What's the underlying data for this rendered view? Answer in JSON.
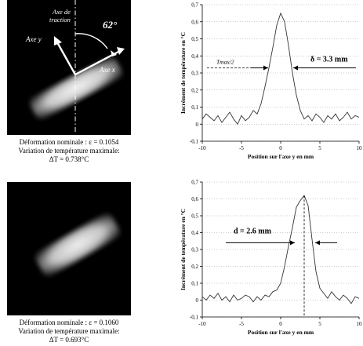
{
  "panels": [
    {
      "image": {
        "axis_traction": [
          "Axe de",
          "traction"
        ],
        "axis_y": "Axe y",
        "axis_x": "Axe x",
        "angle": "62°"
      },
      "caption": {
        "line1": "Déformation nominale : ε = 0.1054",
        "line2": "Variation de température maximale:",
        "line3": "ΔT = 0.738°C"
      }
    },
    {
      "image": {},
      "caption": {
        "line1": "Déformation nominale : ε = 0.1060",
        "line2": "Variation de température maximale:",
        "line3": "ΔT = 0.693°C"
      }
    }
  ],
  "chart_data": [
    {
      "type": "line",
      "title": "",
      "xlabel": "Position sur l'axe y en mm",
      "ylabel": "Incrément de température en °C",
      "xlim": [
        -10,
        10
      ],
      "ylim": [
        -0.1,
        0.7
      ],
      "xticks": [
        -10,
        -5,
        0,
        5,
        10
      ],
      "yticks": [
        -0.1,
        0,
        0.1,
        0.2,
        0.3,
        0.4,
        0.5,
        0.6,
        0.7
      ],
      "grid": "horizontal dotted",
      "series": [
        {
          "x": [
            -10,
            -9.5,
            -9,
            -8.5,
            -8,
            -7.5,
            -7,
            -6.5,
            -6,
            -5.5,
            -5,
            -4.5,
            -4,
            -3.5,
            -3,
            -2.5,
            -2,
            -1.5,
            -1,
            -0.5,
            0,
            0.5,
            1,
            1.5,
            2,
            2.5,
            3,
            3.5,
            4,
            4.5,
            5,
            5.5,
            6,
            6.5,
            7,
            7.5,
            8,
            8.5,
            9,
            9.5,
            10
          ],
          "y": [
            0.03,
            0.06,
            0.04,
            0.02,
            0.05,
            0.01,
            0.04,
            0.07,
            0.03,
            0.0,
            0.05,
            0.02,
            0.04,
            0.08,
            0.06,
            0.12,
            0.22,
            0.33,
            0.45,
            0.58,
            0.65,
            0.6,
            0.46,
            0.3,
            0.17,
            0.08,
            0.03,
            0.05,
            0.02,
            0.06,
            0.04,
            0.01,
            0.05,
            0.03,
            0.06,
            0.02,
            0.04,
            0.07,
            0.03,
            0.05,
            0.04
          ]
        }
      ],
      "annotations": {
        "tmax_half": "Tmax/2",
        "tmax_level": 0.33,
        "width_label": "δ = 3.3 mm",
        "width_range": [
          -1.6,
          1.6
        ]
      }
    },
    {
      "type": "line",
      "title": "",
      "xlabel": "Position sur l'axe y en mm",
      "ylabel": "Incrément de température en °C",
      "xlim": [
        -10,
        10
      ],
      "ylim": [
        -0.1,
        0.7
      ],
      "xticks": [
        -10,
        -5,
        0,
        5,
        10
      ],
      "yticks": [
        -0.1,
        0,
        0.1,
        0.2,
        0.3,
        0.4,
        0.5,
        0.6,
        0.7
      ],
      "grid": "horizontal dotted",
      "series": [
        {
          "x": [
            -10,
            -9.5,
            -9,
            -8.5,
            -8,
            -7.5,
            -7,
            -6.5,
            -6,
            -5.5,
            -5,
            -4.5,
            -4,
            -3.5,
            -3,
            -2.5,
            -2,
            -1.5,
            -1,
            -0.5,
            0,
            0.5,
            1,
            1.5,
            2,
            2.5,
            3,
            3.5,
            4,
            4.5,
            5,
            5.5,
            6,
            6.5,
            7,
            7.5,
            8,
            8.5,
            9,
            9.5,
            10
          ],
          "y": [
            0.02,
            0.0,
            0.03,
            0.01,
            0.04,
            0.0,
            0.02,
            -0.01,
            0.03,
            0.0,
            0.01,
            0.03,
            0.02,
            -0.01,
            0.02,
            0.0,
            0.03,
            0.02,
            0.05,
            0.06,
            0.1,
            0.2,
            0.32,
            0.43,
            0.55,
            0.59,
            0.62,
            0.56,
            0.36,
            0.17,
            0.07,
            0.04,
            0.01,
            0.05,
            0.02,
            0.0,
            0.03,
            0.01,
            -0.02,
            0.02,
            0.01
          ]
        }
      ],
      "annotations": {
        "width_label": "d = 2.6 mm",
        "width_range": [
          1.8,
          4.4
        ],
        "peak_x": 3
      }
    }
  ]
}
